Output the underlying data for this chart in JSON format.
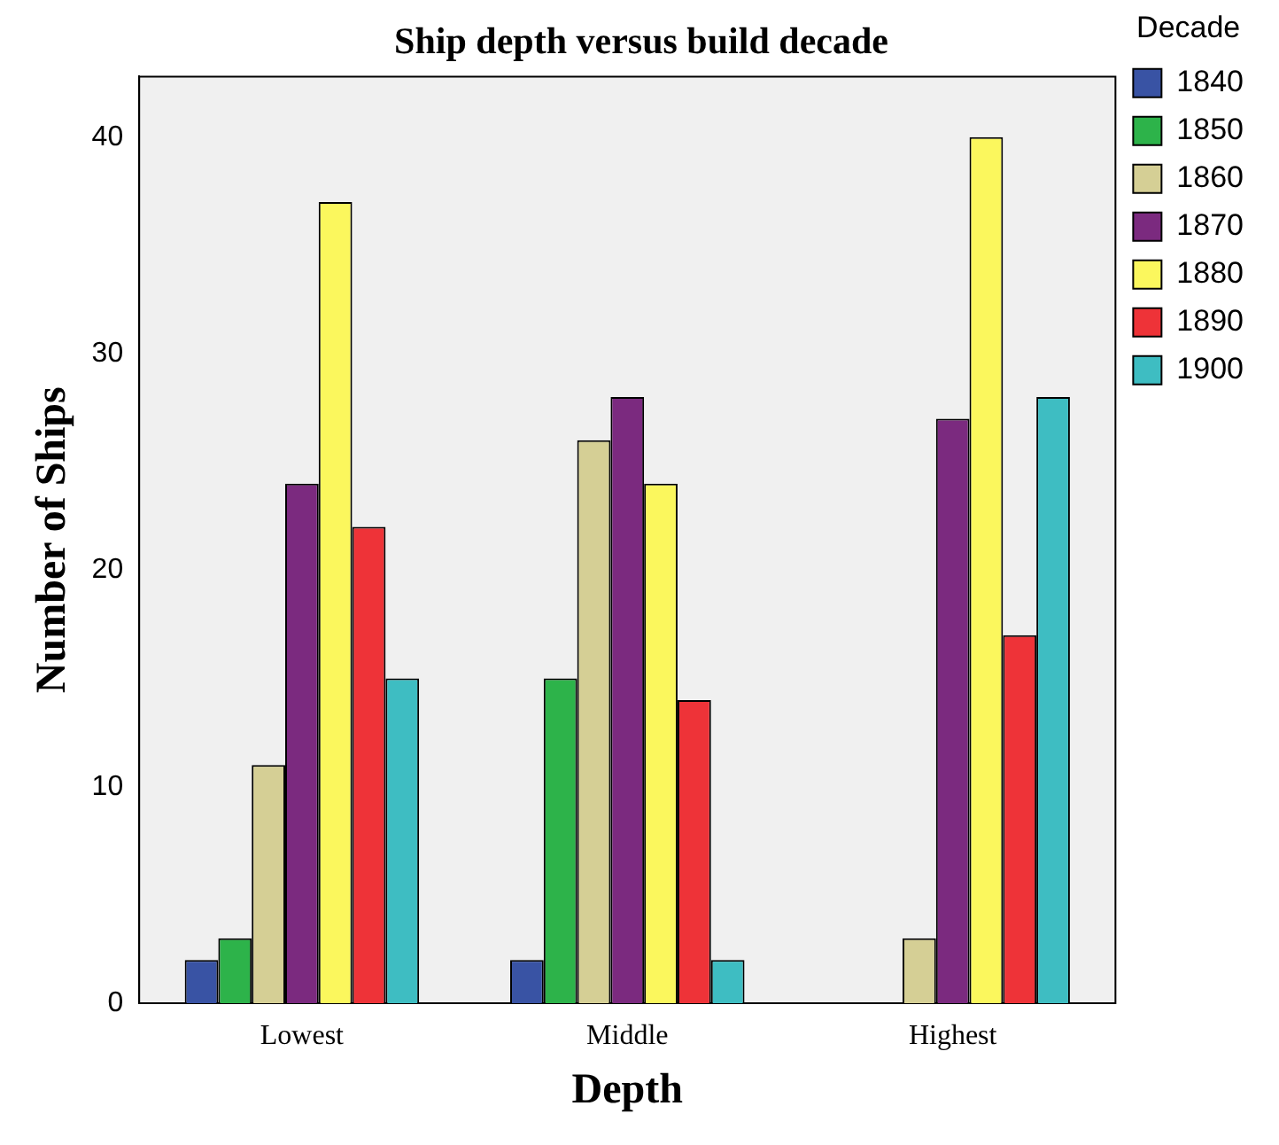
{
  "chart_data": {
    "type": "bar",
    "title": "Ship depth versus build decade",
    "xlabel": "Depth",
    "ylabel": "Number of Ships",
    "legend_title": "Decade",
    "legend": "right",
    "grid": false,
    "categories": [
      "Lowest",
      "Middle",
      "Highest"
    ],
    "ylim": [
      0,
      42.8
    ],
    "yticks": [
      0,
      10,
      20,
      30,
      40
    ],
    "series": [
      {
        "name": "1840",
        "color": "#3953a4",
        "values": [
          2,
          2,
          null
        ]
      },
      {
        "name": "1850",
        "color": "#2db34a",
        "values": [
          3,
          15,
          null
        ]
      },
      {
        "name": "1860",
        "color": "#d5cf95",
        "values": [
          11,
          26,
          3
        ]
      },
      {
        "name": "1870",
        "color": "#7b2a7f",
        "values": [
          24,
          28,
          27
        ]
      },
      {
        "name": "1880",
        "color": "#fbf75d",
        "values": [
          37,
          24,
          40
        ]
      },
      {
        "name": "1890",
        "color": "#ee3338",
        "values": [
          22,
          14,
          17
        ]
      },
      {
        "name": "1900",
        "color": "#3ebdc2",
        "values": [
          15,
          2,
          28
        ]
      }
    ]
  }
}
